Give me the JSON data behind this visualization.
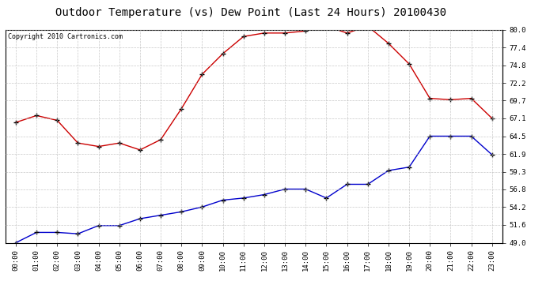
{
  "title": "Outdoor Temperature (vs) Dew Point (Last 24 Hours) 20100430",
  "copyright": "Copyright 2010 Cartronics.com",
  "x_labels": [
    "00:00",
    "01:00",
    "02:00",
    "03:00",
    "04:00",
    "05:00",
    "06:00",
    "07:00",
    "08:00",
    "09:00",
    "10:00",
    "11:00",
    "12:00",
    "13:00",
    "14:00",
    "15:00",
    "16:00",
    "17:00",
    "18:00",
    "19:00",
    "20:00",
    "21:00",
    "22:00",
    "23:00"
  ],
  "temp_values": [
    66.5,
    67.5,
    66.8,
    63.5,
    63.0,
    63.5,
    62.5,
    64.0,
    68.5,
    73.5,
    76.5,
    79.0,
    79.5,
    79.5,
    79.8,
    80.5,
    79.5,
    80.5,
    78.0,
    75.0,
    70.0,
    69.8,
    70.0,
    67.1
  ],
  "dew_values": [
    49.0,
    50.5,
    50.5,
    50.3,
    51.5,
    51.5,
    52.5,
    53.0,
    53.5,
    54.2,
    55.2,
    55.5,
    56.0,
    56.8,
    56.8,
    55.5,
    57.5,
    57.5,
    59.5,
    60.0,
    64.5,
    64.5,
    64.5,
    61.8
  ],
  "temp_color": "#cc0000",
  "dew_color": "#0000cc",
  "bg_color": "#ffffff",
  "grid_color": "#bbbbbb",
  "ylim": [
    49.0,
    80.0
  ],
  "yticks": [
    49.0,
    51.6,
    54.2,
    56.8,
    59.3,
    61.9,
    64.5,
    67.1,
    69.7,
    72.2,
    74.8,
    77.4,
    80.0
  ],
  "ytick_labels": [
    "49.0",
    "51.6",
    "54.2",
    "56.8",
    "59.3",
    "61.9",
    "64.5",
    "67.1",
    "69.7",
    "72.2",
    "74.8",
    "77.4",
    "80.0"
  ],
  "title_fontsize": 10,
  "copyright_fontsize": 6,
  "tick_fontsize": 6.5
}
